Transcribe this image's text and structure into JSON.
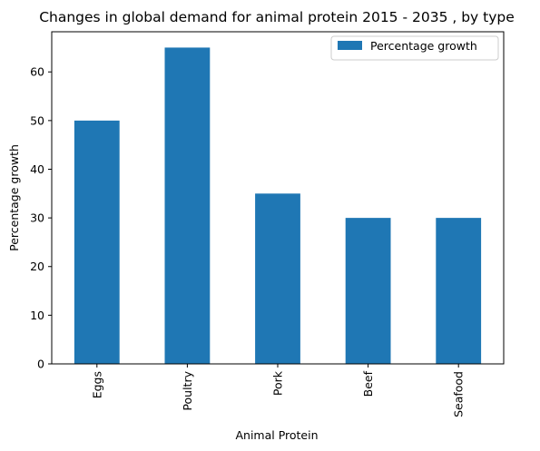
{
  "chart_data": {
    "type": "bar",
    "title": "Changes in global demand for animal protein 2015 - 2035 , by type",
    "xlabel": "Animal Protein",
    "ylabel": "Percentage growth",
    "categories": [
      "Eggs",
      "Poultry",
      "Pork",
      "Beef",
      "Seafood"
    ],
    "series": [
      {
        "name": "Percentage growth",
        "values": [
          50,
          65,
          35,
          30,
          30
        ],
        "color": "#1f77b4"
      }
    ],
    "ylim": [
      0,
      68.25
    ],
    "yticks": [
      0,
      10,
      20,
      30,
      40,
      50,
      60
    ],
    "grid": false,
    "legend_position": "top-right"
  }
}
